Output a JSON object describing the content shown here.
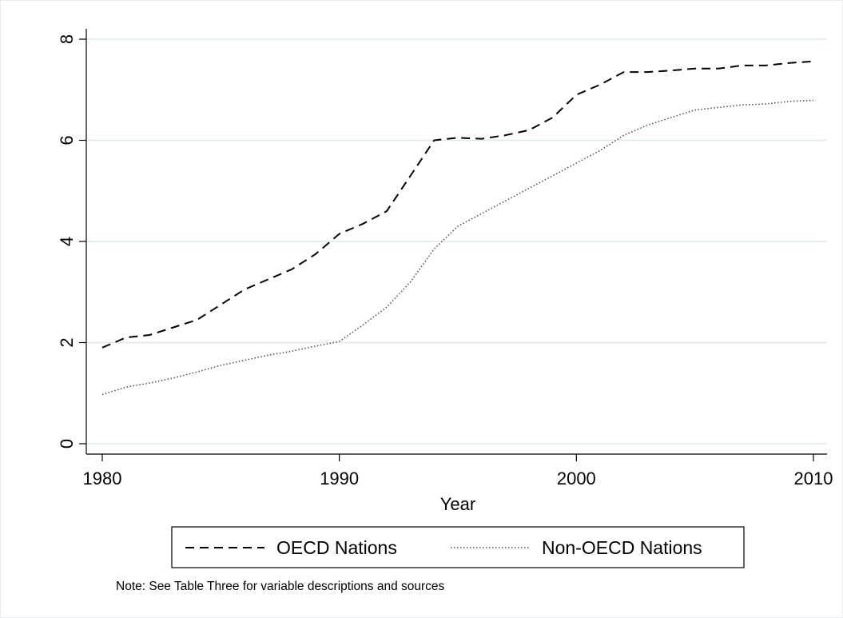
{
  "chart_data": {
    "type": "line",
    "title": "",
    "xlabel": "Year",
    "ylabel": "",
    "xlim": [
      1980,
      2010
    ],
    "ylim": [
      0,
      8
    ],
    "xticks": [
      1980,
      1990,
      2000,
      2010
    ],
    "yticks": [
      0,
      2,
      4,
      6,
      8
    ],
    "grid": true,
    "legend_position": "bottom",
    "series": [
      {
        "name": "OECD Nations",
        "style": "dashed",
        "color": "#000000",
        "x": [
          1980,
          1981,
          1982,
          1983,
          1984,
          1985,
          1986,
          1987,
          1988,
          1989,
          1990,
          1991,
          1992,
          1993,
          1994,
          1995,
          1996,
          1997,
          1998,
          1999,
          2000,
          2001,
          2002,
          2003,
          2004,
          2005,
          2006,
          2007,
          2008,
          2009,
          2010
        ],
        "y": [
          1.9,
          2.1,
          2.15,
          2.3,
          2.45,
          2.75,
          3.05,
          3.25,
          3.45,
          3.75,
          4.15,
          4.35,
          4.6,
          5.3,
          6.0,
          6.05,
          6.03,
          6.1,
          6.2,
          6.45,
          6.9,
          7.1,
          7.35,
          7.35,
          7.38,
          7.42,
          7.42,
          7.48,
          7.48,
          7.53,
          7.56
        ]
      },
      {
        "name": "Non-OECD Nations",
        "style": "dotted",
        "color": "#555555",
        "x": [
          1980,
          1981,
          1982,
          1983,
          1984,
          1985,
          1986,
          1987,
          1988,
          1989,
          1990,
          1991,
          1992,
          1993,
          1994,
          1995,
          1996,
          1997,
          1998,
          1999,
          2000,
          2001,
          2002,
          2003,
          2004,
          2005,
          2006,
          2007,
          2008,
          2009,
          2010
        ],
        "y": [
          0.97,
          1.12,
          1.2,
          1.3,
          1.42,
          1.55,
          1.65,
          1.75,
          1.83,
          1.93,
          2.02,
          2.35,
          2.7,
          3.2,
          3.85,
          4.3,
          4.55,
          4.8,
          5.05,
          5.3,
          5.55,
          5.8,
          6.1,
          6.3,
          6.45,
          6.6,
          6.65,
          6.7,
          6.72,
          6.77,
          6.79
        ]
      }
    ],
    "legend": [
      "OECD Nations",
      "Non-OECD Nations"
    ],
    "note": "Note: See Table Three for variable descriptions and sources",
    "colors": {
      "gridline": "#dfe8ea",
      "frame_border": "#e6ecef",
      "axis": "#000000"
    }
  }
}
